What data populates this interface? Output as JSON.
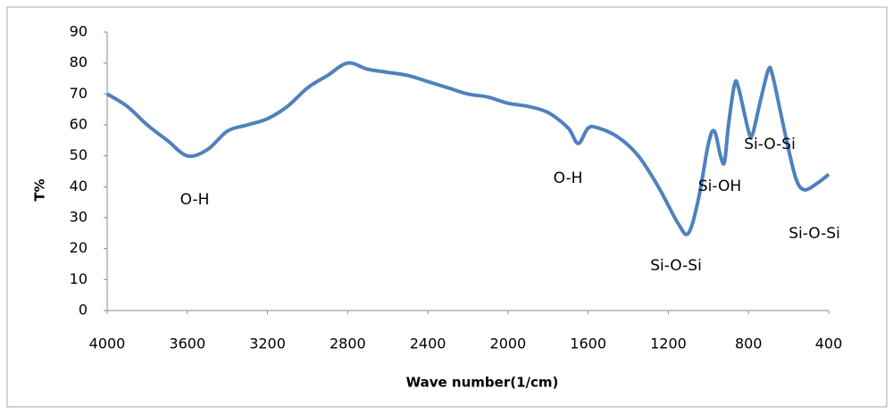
{
  "chart_data": {
    "type": "line",
    "y_label": "T%",
    "x_label": "Wave number(1/cm)",
    "x": [
      4000,
      3900,
      3800,
      3700,
      3600,
      3500,
      3400,
      3300,
      3200,
      3100,
      3000,
      2900,
      2800,
      2700,
      2600,
      2500,
      2400,
      2300,
      2200,
      2100,
      2000,
      1900,
      1800,
      1700,
      1650,
      1600,
      1550,
      1450,
      1350,
      1250,
      1150,
      1100,
      1050,
      1000,
      970,
      940,
      920,
      900,
      870,
      850,
      800,
      780,
      740,
      700,
      680,
      640,
      600,
      560,
      520,
      460,
      400
    ],
    "values": [
      70,
      66,
      60,
      55,
      50,
      52,
      58,
      60,
      62,
      66,
      72,
      76,
      80,
      78,
      77,
      76,
      74,
      72,
      70,
      69,
      67,
      66,
      64,
      59,
      54,
      59,
      59,
      56,
      50,
      40,
      28,
      25,
      36,
      54,
      58,
      50,
      48,
      60,
      73,
      72,
      58,
      57,
      68,
      78,
      76,
      64,
      52,
      42,
      39,
      41,
      44
    ],
    "color": "#4f81bd",
    "xlim": [
      4000,
      400
    ],
    "xticks": [
      4000,
      3600,
      3200,
      2800,
      2400,
      2000,
      1600,
      1200,
      800,
      400
    ],
    "ylim": [
      0,
      90
    ],
    "yticks": [
      0,
      10,
      20,
      30,
      40,
      50,
      60,
      70,
      80,
      90
    ],
    "grid": false,
    "annotations": [
      "O-H",
      "O-H",
      "Si-O-Si",
      "Si-OH",
      "Si-O-Si",
      "Si-O-Si"
    ]
  }
}
